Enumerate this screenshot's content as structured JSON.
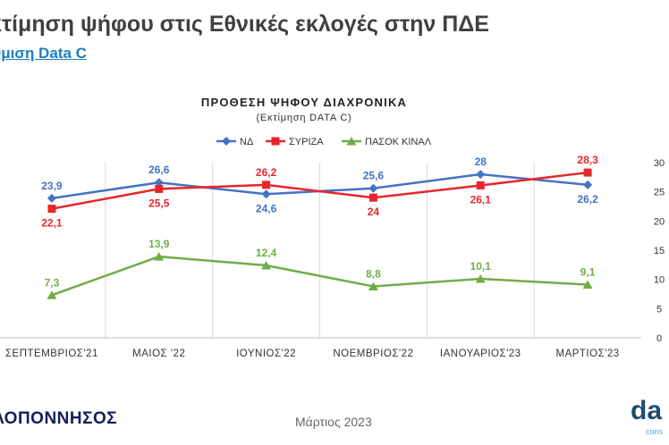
{
  "header": {
    "title": "κτίμηση ψήφου στις Εθνικές εκλογές στην ΠΔΕ",
    "subtitle": "θμιση Data C"
  },
  "footer": {
    "region": "ΛΟΠΟΝΝΗΣΟΣ",
    "date": "Μάρτιος 2023",
    "logo": "da",
    "logo_sub": "cons"
  },
  "chart_data": {
    "type": "line",
    "title": "ΠΡΟΘΕΣΗ ΨΗΦΟΥ ΔΙΑΧΡΟΝΙΚΑ",
    "subtitle": "(Εκτίμηση DATA C)",
    "categories": [
      "ΣΕΠΤΕΜΒΡΙΟΣ'21",
      "ΜΑΙΟΣ '22",
      "ΙΟΥΝΙΟΣ'22",
      "ΝΟΕΜΒΡΙΟΣ'22",
      "ΙΑΝΟΥΑΡΙΟΣ'23",
      "ΜΑΡΤΙΟΣ'23"
    ],
    "ylim": [
      0,
      30
    ],
    "yticks": [
      0,
      5,
      10,
      15,
      20,
      25,
      30
    ],
    "y_axis_side": "right",
    "grid": "vertical",
    "legend": "top",
    "series": [
      {
        "name": "ΝΔ",
        "color": "#4472c4",
        "marker": "diamond",
        "values": [
          23.9,
          26.6,
          24.6,
          25.6,
          28,
          26.2
        ],
        "labels": [
          "23,9",
          "26,6",
          "24,6",
          "25,6",
          "28",
          "26,2"
        ],
        "label_pos": [
          "above",
          "above",
          "below",
          "above",
          "above",
          "below"
        ]
      },
      {
        "name": "ΣΥΡΙΖΑ",
        "color": "#e8262a",
        "marker": "square",
        "values": [
          22.1,
          25.5,
          26.2,
          24,
          26.1,
          28.3
        ],
        "labels": [
          "22,1",
          "25,5",
          "26,2",
          "24",
          "26,1",
          "28,3"
        ],
        "label_pos": [
          "below",
          "below",
          "above",
          "below",
          "below",
          "above"
        ]
      },
      {
        "name": "ΠΑΣΟΚ ΚΙΝΑΛ",
        "color": "#70ad47",
        "marker": "triangle",
        "values": [
          7.3,
          13.9,
          12.4,
          8.8,
          10.1,
          9.1
        ],
        "labels": [
          "7,3",
          "13,9",
          "12,4",
          "8,8",
          "10,1",
          "9,1"
        ],
        "label_pos": [
          "above",
          "above",
          "above",
          "above",
          "above",
          "above"
        ]
      }
    ]
  }
}
